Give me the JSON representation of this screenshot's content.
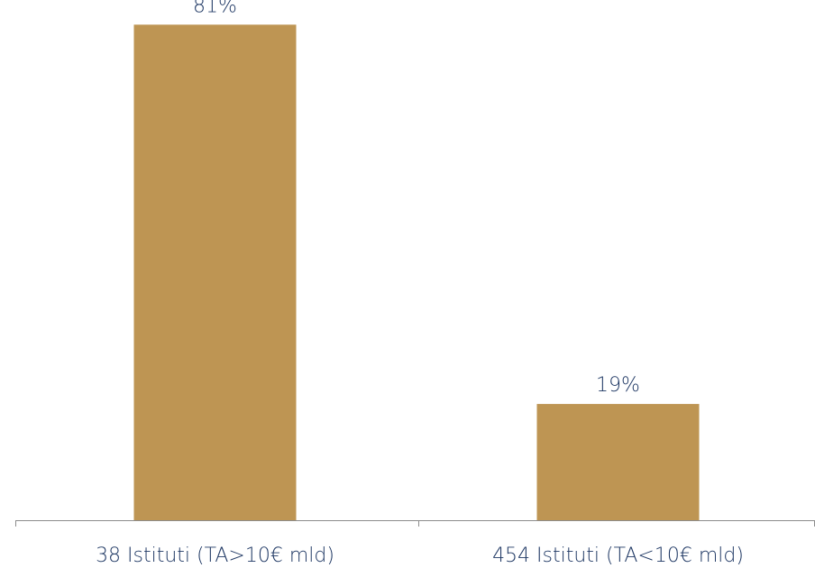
{
  "chart_data": {
    "type": "bar",
    "title": "",
    "xlabel": "",
    "ylabel": "",
    "categories": [
      "38 Istituti (TA>10€ mld)",
      "454 Istituti (TA<10€ mld)"
    ],
    "values": [
      81,
      19
    ],
    "data_labels": [
      "81%",
      "19%"
    ],
    "ylim": [
      0,
      84
    ],
    "grid": false,
    "legend": "none",
    "colors": {
      "bar": "#BE9553",
      "text": "#1F3864",
      "axis": "#8C8C8C"
    }
  }
}
